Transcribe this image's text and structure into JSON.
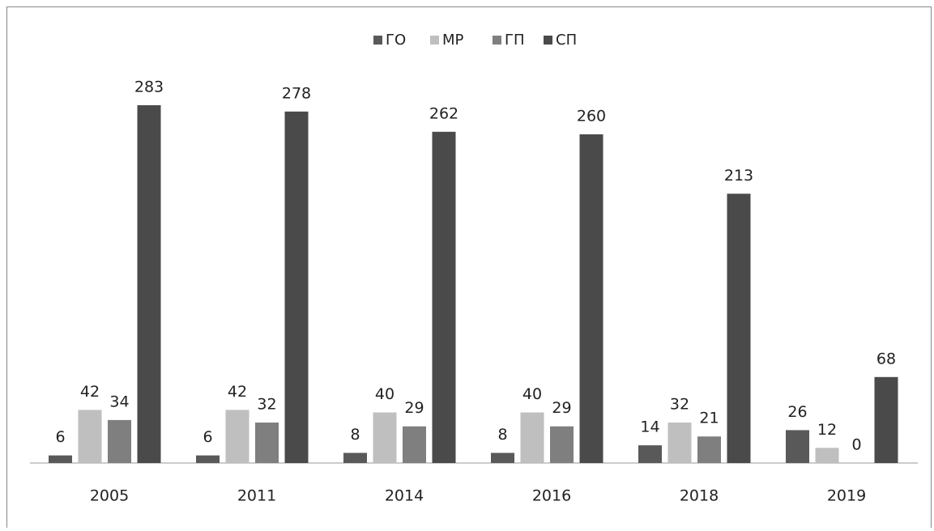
{
  "chart_data": {
    "type": "bar",
    "categories": [
      "2005",
      "2011",
      "2014",
      "2016",
      "2018",
      "2019"
    ],
    "series": [
      {
        "name": "ГО",
        "color": "#595959",
        "values": [
          6,
          6,
          8,
          8,
          14,
          26
        ]
      },
      {
        "name": "МР",
        "color": "#bfbfbf",
        "values": [
          42,
          42,
          40,
          40,
          32,
          12
        ]
      },
      {
        "name": "ГП",
        "color": "#7f7f7f",
        "values": [
          34,
          32,
          29,
          29,
          21,
          0
        ]
      },
      {
        "name": "СП",
        "color": "#4a4a4a",
        "values": [
          283,
          278,
          262,
          260,
          213,
          68
        ]
      }
    ],
    "legend": "top"
  }
}
